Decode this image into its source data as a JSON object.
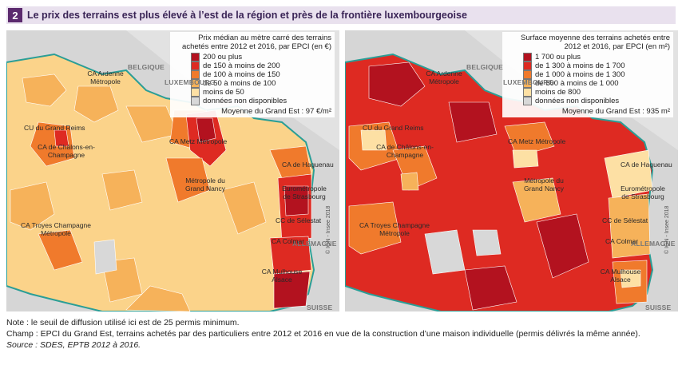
{
  "header": {
    "number": "2",
    "title": "Le prix des terrains est plus élevé à l’est de la région et près de la frontière luxembourgeoise"
  },
  "countries": [
    "BELGIQUE",
    "LUXEMBOURG",
    "ALLEMAGNE",
    "SUISSE"
  ],
  "cities": {
    "ardenne": "CA Ardenne Métropole",
    "reims": "CU du Grand Reims",
    "chalons": "CA de Châlons-en-Champagne",
    "metz": "CA Metz Métropole",
    "haguenau": "CA de Haguenau",
    "nancy": "Métropole du Grand Nancy",
    "strasbourg": "Eurométropole de Strasbourg",
    "troyes": "CA Troyes Champagne Métropole",
    "selestat": "CC de Sélestat",
    "colmar": "CA Colmar",
    "mulhouse": "CA Mulhouse Alsace"
  },
  "map_left": {
    "legend_title": "Prix médian au mètre carré des terrains achetés entre 2012 et 2016, par EPCI (en €)",
    "items": [
      {
        "label": "200 ou plus",
        "color": "#b3121f"
      },
      {
        "label": "de 150 à moins de 200",
        "color": "#de2a22"
      },
      {
        "label": "de 100 à moins de 150",
        "color": "#f07a2c"
      },
      {
        "label": "de 50 à moins de 100",
        "color": "#f6b25a"
      },
      {
        "label": "moins de 50",
        "color": "#fde0a4"
      },
      {
        "label": "données non disponibles",
        "color": "#d8d8d8"
      }
    ],
    "mean": "Moyenne du Grand Est : 97 €/m²"
  },
  "map_right": {
    "legend_title": "Surface moyenne des terrains achetés entre 2012 et 2016, par EPCI (en m²)",
    "items": [
      {
        "label": "1 700 ou plus",
        "color": "#b3121f"
      },
      {
        "label": "de 1 300 à moins de 1 700",
        "color": "#de2a22"
      },
      {
        "label": "de 1 000 à moins de 1 300",
        "color": "#f07a2c"
      },
      {
        "label": "de 800 à moins de 1 000",
        "color": "#f6b25a"
      },
      {
        "label": "moins de 800",
        "color": "#fde0a4"
      },
      {
        "label": "données non disponibles",
        "color": "#d8d8d8"
      }
    ],
    "mean": "Moyenne du Grand Est : 935 m²"
  },
  "credit": "© IGN - Insee 2018",
  "notes": {
    "note": "Note : le seuil de diffusion utilisé ici est de 25 permis minimum.",
    "champ": "Champ : EPCI du Grand Est, terrains achetés par des particuliers entre 2012 et 2016 en vue de la construction d’une maison individuelle (permis délivrés la même année).",
    "source": "Source : SDES, EPTB 2012 à 2016."
  }
}
